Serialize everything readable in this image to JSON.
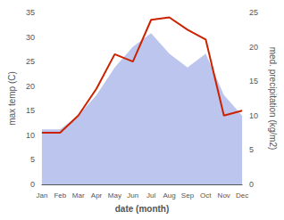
{
  "chart_data": {
    "type": "line",
    "categories": [
      "Jan",
      "Feb",
      "Mar",
      "Apr",
      "May",
      "Jun",
      "Jul",
      "Aug",
      "Sep",
      "Oct",
      "Nov",
      "Dec"
    ],
    "xlabel": "date (month)",
    "ylabel": "max temp (C)",
    "y2label": "med. precipitation (kg/m2)",
    "ylim": [
      0,
      35
    ],
    "yticks": [
      0,
      5,
      10,
      15,
      20,
      25,
      30,
      35
    ],
    "y2lim": [
      0,
      25
    ],
    "y2ticks": [
      0,
      5,
      10,
      15,
      20,
      25
    ],
    "grid": false,
    "series": [
      {
        "type": "area",
        "axis": "y2",
        "color": "#bcc5ee",
        "values": [
          8,
          8,
          10,
          13,
          17,
          20,
          22,
          19,
          17,
          19,
          13,
          10
        ]
      },
      {
        "type": "line",
        "color": "#cc2200",
        "values": [
          10.5,
          10.5,
          14.0,
          19.5,
          26.5,
          25.0,
          33.5,
          34.0,
          31.5,
          29.5,
          14.0,
          15.0
        ]
      }
    ]
  }
}
